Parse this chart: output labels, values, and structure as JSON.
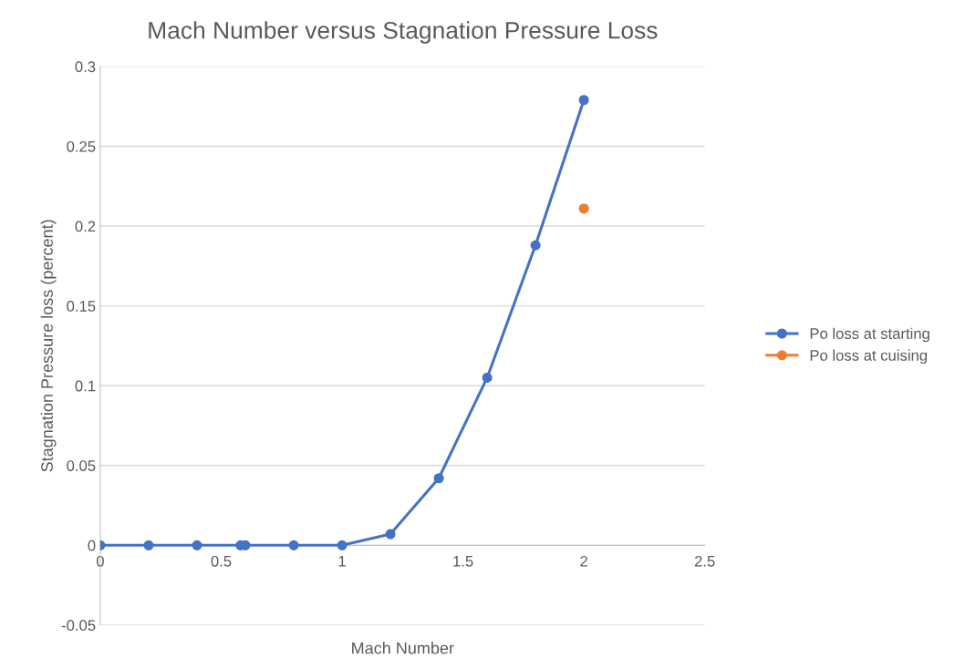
{
  "chart_data": {
    "type": "line",
    "title": "Mach Number versus Stagnation Pressure Loss",
    "xlabel": "Mach Number",
    "ylabel": "Stagnation Pressure loss (percent)",
    "series": [
      {
        "name": "Po loss at starting",
        "color": "#4472c4",
        "x": [
          0,
          0.2,
          0.4,
          0.58,
          0.6,
          0.8,
          1.0,
          1.2,
          1.4,
          1.6,
          1.8,
          2.0
        ],
        "values": [
          0,
          0,
          0,
          0,
          0,
          0,
          0,
          0.007,
          0.042,
          0.105,
          0.188,
          0.279
        ]
      },
      {
        "name": "Po loss at cuising",
        "color": "#ed7d31",
        "type": "scatter",
        "x": [
          2.0
        ],
        "values": [
          0.211
        ]
      }
    ],
    "xlim": [
      0,
      2.5
    ],
    "xticks": [
      0,
      0.5,
      1,
      1.5,
      2,
      2.5
    ],
    "ylim": [
      -0.05,
      0.3
    ],
    "yticks": [
      -0.05,
      0,
      0.05,
      0.1,
      0.15,
      0.2,
      0.25,
      0.3
    ],
    "grid": "y",
    "legend": "right",
    "marker": "circle",
    "line_style": "solid"
  }
}
